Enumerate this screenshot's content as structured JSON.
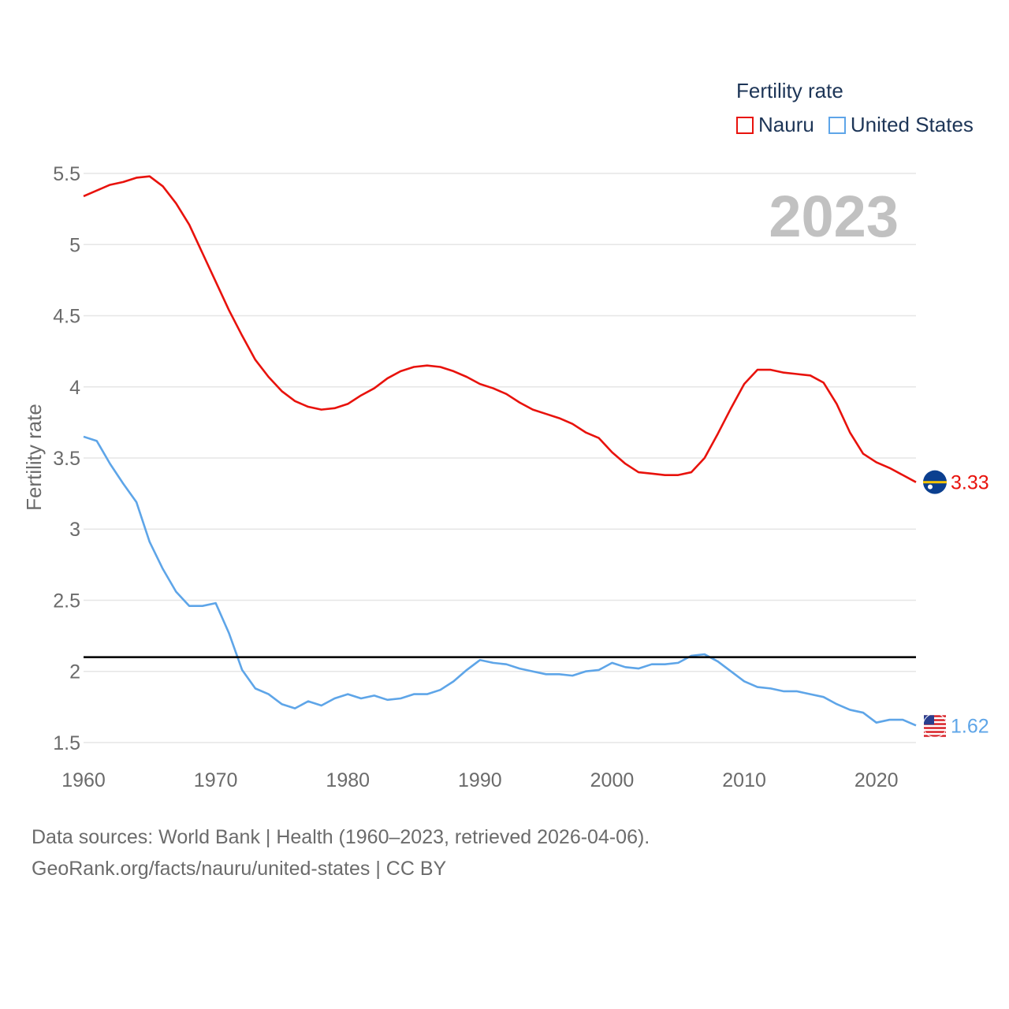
{
  "chart_data": {
    "type": "line",
    "year_label": "2023",
    "ylabel": "Fertility rate",
    "ylim": [
      1.4,
      5.6
    ],
    "xlim": [
      1960,
      2023
    ],
    "y_ticks": [
      "1.5",
      "2",
      "2.5",
      "3",
      "3.5",
      "4",
      "4.5",
      "5",
      "5.5"
    ],
    "x_ticks": [
      "1960",
      "1970",
      "1980",
      "1990",
      "2000",
      "2010",
      "2020"
    ],
    "reference_line": 2.1,
    "legend": {
      "title": "Fertility rate",
      "entries": [
        "Nauru",
        "United States"
      ]
    },
    "x": [
      1960,
      1961,
      1962,
      1963,
      1964,
      1965,
      1966,
      1967,
      1968,
      1969,
      1970,
      1971,
      1972,
      1973,
      1974,
      1975,
      1976,
      1977,
      1978,
      1979,
      1980,
      1981,
      1982,
      1983,
      1984,
      1985,
      1986,
      1987,
      1988,
      1989,
      1990,
      1991,
      1992,
      1993,
      1994,
      1995,
      1996,
      1997,
      1998,
      1999,
      2000,
      2001,
      2002,
      2003,
      2004,
      2005,
      2006,
      2007,
      2008,
      2009,
      2010,
      2011,
      2012,
      2013,
      2014,
      2015,
      2016,
      2017,
      2018,
      2019,
      2020,
      2021,
      2022,
      2023
    ],
    "series": [
      {
        "name": "Nauru",
        "color": "#e8120c",
        "end_label": "3.33",
        "values": [
          5.34,
          5.38,
          5.42,
          5.44,
          5.47,
          5.48,
          5.41,
          5.29,
          5.14,
          4.94,
          4.74,
          4.54,
          4.36,
          4.19,
          4.07,
          3.97,
          3.9,
          3.86,
          3.84,
          3.85,
          3.88,
          3.94,
          3.99,
          4.06,
          4.11,
          4.14,
          4.15,
          4.14,
          4.11,
          4.07,
          4.02,
          3.99,
          3.95,
          3.89,
          3.84,
          3.81,
          3.78,
          3.74,
          3.68,
          3.64,
          3.54,
          3.46,
          3.4,
          3.39,
          3.38,
          3.38,
          3.4,
          3.5,
          3.67,
          3.85,
          4.02,
          4.12,
          4.12,
          4.1,
          4.09,
          4.08,
          4.03,
          3.88,
          3.68,
          3.53,
          3.47,
          3.43,
          3.38,
          3.33
        ]
      },
      {
        "name": "United States",
        "color": "#5ea5e8",
        "end_label": "1.62",
        "values": [
          3.65,
          3.62,
          3.46,
          3.32,
          3.19,
          2.91,
          2.72,
          2.56,
          2.46,
          2.46,
          2.48,
          2.27,
          2.01,
          1.88,
          1.84,
          1.77,
          1.74,
          1.79,
          1.76,
          1.81,
          1.84,
          1.81,
          1.83,
          1.8,
          1.81,
          1.84,
          1.84,
          1.87,
          1.93,
          2.01,
          2.08,
          2.06,
          2.05,
          2.02,
          2.0,
          1.98,
          1.98,
          1.97,
          2.0,
          2.01,
          2.06,
          2.03,
          2.02,
          2.05,
          2.05,
          2.06,
          2.11,
          2.12,
          2.07,
          2.0,
          1.93,
          1.89,
          1.88,
          1.86,
          1.86,
          1.84,
          1.82,
          1.77,
          1.73,
          1.71,
          1.64,
          1.66,
          1.66,
          1.62
        ]
      }
    ]
  },
  "footer": {
    "line1": "Data sources: World Bank | Health (1960–2023, retrieved 2026-04-06).",
    "line2": "GeoRank.org/facts/nauru/united-states | CC BY"
  }
}
